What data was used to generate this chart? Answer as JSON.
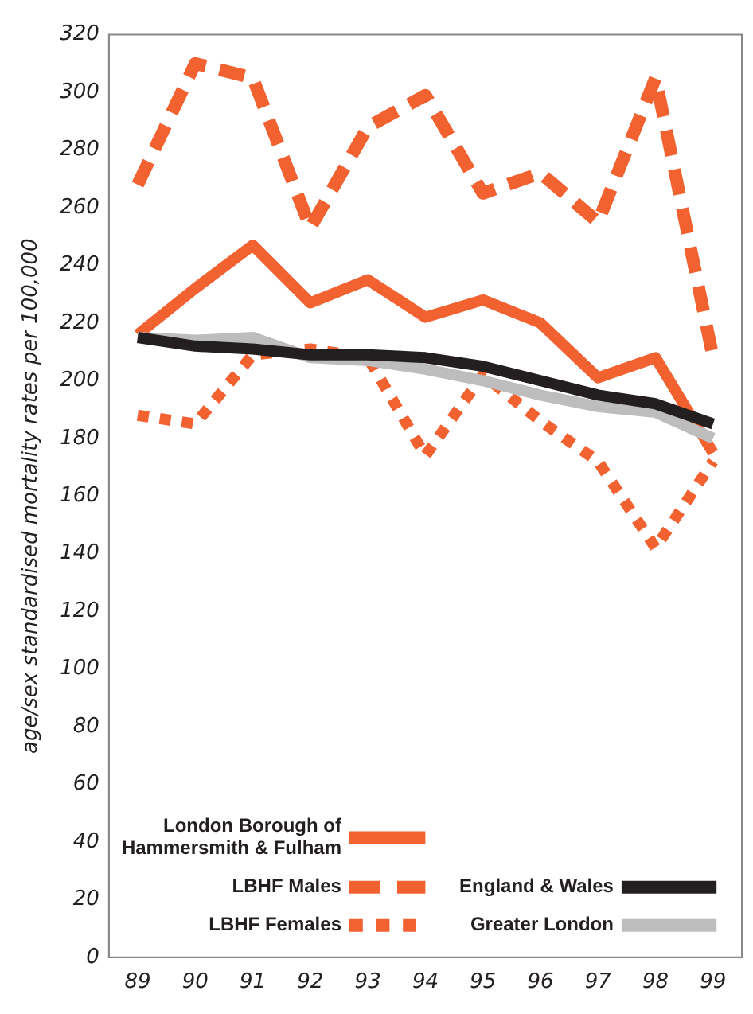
{
  "chart_data": {
    "type": "line",
    "ylabel": "age/sex standardised mortality rates per 100,000",
    "categories": [
      "89",
      "90",
      "91",
      "92",
      "93",
      "94",
      "95",
      "96",
      "97",
      "98",
      "99"
    ],
    "ylim": [
      0,
      320
    ],
    "yticks": [
      0,
      20,
      40,
      60,
      80,
      100,
      120,
      140,
      160,
      180,
      200,
      220,
      240,
      260,
      280,
      300,
      320
    ],
    "grid": false,
    "legend": "bottom",
    "marker": "none",
    "series": [
      {
        "name": "England & Wales",
        "color": "#231f20",
        "line_style": "solid",
        "values": [
          215,
          212,
          211,
          209,
          209,
          208,
          205,
          200,
          195,
          192,
          185
        ]
      },
      {
        "name": "Greater London",
        "color": "#bdbdbd",
        "line_style": "solid",
        "values": [
          215,
          214,
          215,
          208,
          207,
          204,
          200,
          195,
          191,
          189,
          180
        ]
      },
      {
        "name": "London Borough of Hammersmith & Fulham",
        "color": "#f26130",
        "line_style": "solid",
        "values": [
          216,
          232,
          247,
          227,
          235,
          222,
          228,
          220,
          201,
          208,
          175
        ]
      },
      {
        "name": "LBHF Males",
        "color": "#f26130",
        "line_style": "dashed",
        "values": [
          268,
          310,
          305,
          253,
          288,
          299,
          265,
          272,
          255,
          305,
          208
        ]
      },
      {
        "name": "LBHF Females",
        "color": "#f26130",
        "line_style": "dotted",
        "values": [
          188,
          185,
          209,
          211,
          208,
          174,
          202,
          186,
          172,
          142,
          172
        ]
      }
    ]
  }
}
